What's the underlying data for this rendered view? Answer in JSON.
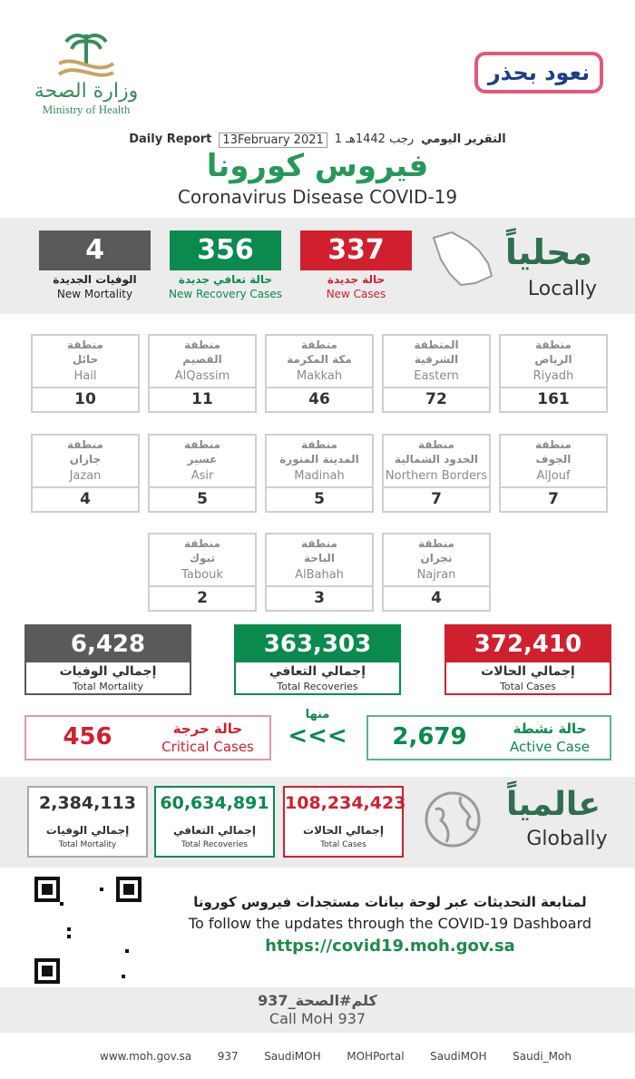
{
  "header": {
    "ministry_ar": "وزارة الصحة",
    "ministry_en": "Ministry of Health",
    "campaign": "نعود بحذر",
    "report_ar": "التقرير اليومي",
    "hijri": "1 رجب 1442هـ",
    "date": "13February 2021",
    "report_en": "Daily Report",
    "title_ar": "فيروس كورونا",
    "title_en": "Coronavirus Disease COVID-19"
  },
  "local": {
    "label_ar": "محلياً",
    "label_en": "Locally",
    "cards": [
      {
        "value": "337",
        "label_ar": "حالة جديدة",
        "label_en": "New Cases"
      },
      {
        "value": "356",
        "label_ar": "حالة تعافي جديدة",
        "label_en": "New Recovery Cases"
      },
      {
        "value": "4",
        "label_ar": "الوفيات الجديدة",
        "label_en": "New Mortality"
      }
    ]
  },
  "regions": [
    {
      "ar1": "منطقة",
      "ar2": "الرياض",
      "en": "Riyadh",
      "value": "161"
    },
    {
      "ar1": "المنطقة",
      "ar2": "الشرقية",
      "en": "Eastern",
      "value": "72"
    },
    {
      "ar1": "منطقة",
      "ar2": "مكة المكرمة",
      "en": "Makkah",
      "value": "46"
    },
    {
      "ar1": "منطقة",
      "ar2": "القصيم",
      "en": "AlQassim",
      "value": "11"
    },
    {
      "ar1": "منطقة",
      "ar2": "حائل",
      "en": "Hail",
      "value": "10"
    },
    {
      "ar1": "منطقة",
      "ar2": "الجوف",
      "en": "AlJouf",
      "value": "7"
    },
    {
      "ar1": "منطقة",
      "ar2": "الحدود الشمالية",
      "en": "Northern Borders",
      "value": "7"
    },
    {
      "ar1": "منطقة",
      "ar2": "المدينة المنورة",
      "en": "Madinah",
      "value": "5"
    },
    {
      "ar1": "منطقة",
      "ar2": "عسير",
      "en": "Asir",
      "value": "5"
    },
    {
      "ar1": "منطقة",
      "ar2": "جازان",
      "en": "Jazan",
      "value": "4"
    },
    {
      "ar1": "منطقة",
      "ar2": "نجران",
      "en": "Najran",
      "value": "4"
    },
    {
      "ar1": "منطقة",
      "ar2": "الباحة",
      "en": "AlBahah",
      "value": "3"
    },
    {
      "ar1": "منطقة",
      "ar2": "تبوك",
      "en": "Tabouk",
      "value": "2"
    }
  ],
  "totals": [
    {
      "value": "372,410",
      "label_ar": "إجمالي الحالات",
      "label_en": "Total Cases"
    },
    {
      "value": "363,303",
      "label_ar": "إجمالي التعافي",
      "label_en": "Total Recoveries"
    },
    {
      "value": "6,428",
      "label_ar": "إجمالي الوفيات",
      "label_en": "Total Mortality"
    }
  ],
  "active": {
    "label_ar": "حالة نشطة",
    "label_en": "Active Case",
    "value": "2,679"
  },
  "of_which": "منها",
  "arrows": "<<<",
  "critical": {
    "label_ar": "حالة حرجة",
    "label_en": "Critical Cases",
    "value": "456"
  },
  "global": {
    "label_ar": "عالمياً",
    "label_en": "Globally",
    "cards": [
      {
        "value": "108,234,423",
        "label_ar": "إجمالي الحالات",
        "label_en": "Total Cases"
      },
      {
        "value": "60,634,891",
        "label_ar": "إجمالي التعافي",
        "label_en": "Total Recoveries"
      },
      {
        "value": "2,384,113",
        "label_ar": "إجمالي الوفيات",
        "label_en": "Total Mortality"
      }
    ]
  },
  "dashboard": {
    "text_ar": "لمتابعة التحديثات عبر لوحة بيانات مستجدات فيروس كورونا",
    "text_en": "To follow the updates through the COVID-19 Dashboard",
    "url": "https://covid19.moh.gov.sa"
  },
  "call": {
    "ar": "كلم#الصحة_937",
    "en": "Call MoH 937"
  },
  "footer": [
    "www.moh.gov.sa",
    "937",
    "SaudiMOH",
    "MOHPortal",
    "SaudiMOH",
    "Saudi_Moh"
  ]
}
